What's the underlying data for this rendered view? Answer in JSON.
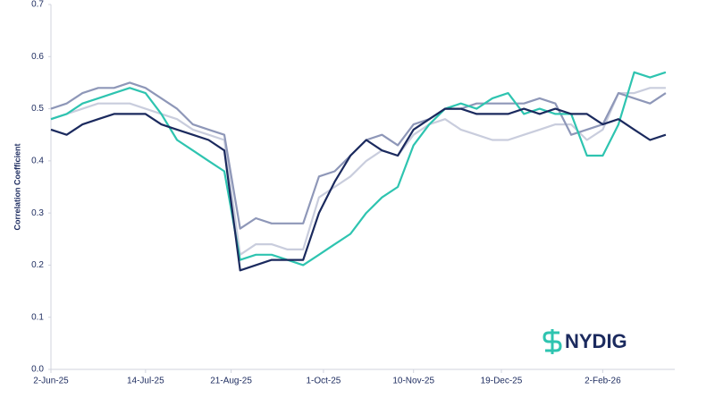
{
  "chart_data": {
    "type": "line",
    "y_label": "Correlation Coefficient",
    "logo_text": "NYDIG",
    "x": [
      "2-Jun-25",
      "9-Jun-25",
      "16-Jun-25",
      "23-Jun-25",
      "30-Jun-25",
      "7-Jul-25",
      "14-Jul-25",
      "21-Jul-25",
      "28-Jul-25",
      "4-Aug-25",
      "11-Aug-25",
      "18-Aug-25",
      "25-Aug-25",
      "1-Sep-25",
      "8-Sep-25",
      "15-Sep-25",
      "22-Sep-25",
      "29-Sep-25",
      "6-Oct-25",
      "13-Oct-25",
      "20-Oct-25",
      "27-Oct-25",
      "3-Nov-25",
      "10-Nov-25",
      "17-Nov-25",
      "24-Nov-25",
      "1-Dec-25",
      "8-Dec-25",
      "15-Dec-25",
      "22-Dec-25",
      "29-Dec-25",
      "5-Jan-26",
      "12-Jan-26",
      "19-Jan-26",
      "26-Jan-26",
      "2-Feb-26",
      "9-Feb-26",
      "16-Feb-26",
      "23-Feb-26",
      "2-Mar-26"
    ],
    "series": [
      {
        "color": "#c9cddd",
        "values": [
          0.48,
          0.49,
          0.5,
          0.51,
          0.51,
          0.51,
          0.5,
          0.49,
          0.48,
          0.46,
          0.45,
          0.44,
          0.22,
          0.24,
          0.24,
          0.23,
          0.23,
          0.33,
          0.35,
          0.37,
          0.4,
          0.42,
          0.41,
          0.45,
          0.47,
          0.48,
          0.46,
          0.45,
          0.44,
          0.44,
          0.45,
          0.46,
          0.47,
          0.47,
          0.44,
          0.46,
          0.53,
          0.53,
          0.54,
          0.54
        ]
      },
      {
        "color": "#8e97b8",
        "values": [
          0.5,
          0.51,
          0.53,
          0.54,
          0.54,
          0.55,
          0.54,
          0.52,
          0.5,
          0.47,
          0.46,
          0.45,
          0.27,
          0.29,
          0.28,
          0.28,
          0.28,
          0.37,
          0.38,
          0.41,
          0.44,
          0.45,
          0.43,
          0.47,
          0.48,
          0.5,
          0.5,
          0.51,
          0.51,
          0.51,
          0.51,
          0.52,
          0.51,
          0.45,
          0.46,
          0.47,
          0.53,
          0.52,
          0.51,
          0.53
        ]
      },
      {
        "color": "#2ec4b0",
        "values": [
          0.48,
          0.49,
          0.51,
          0.52,
          0.53,
          0.54,
          0.53,
          0.49,
          0.44,
          0.42,
          0.4,
          0.38,
          0.21,
          0.22,
          0.22,
          0.21,
          0.2,
          0.22,
          0.24,
          0.26,
          0.3,
          0.33,
          0.35,
          0.43,
          0.47,
          0.5,
          0.51,
          0.5,
          0.52,
          0.53,
          0.49,
          0.5,
          0.49,
          0.49,
          0.41,
          0.41,
          0.47,
          0.57,
          0.56,
          0.57
        ]
      },
      {
        "color": "#1b2a5e",
        "values": [
          0.46,
          0.45,
          0.47,
          0.48,
          0.49,
          0.49,
          0.49,
          0.47,
          0.46,
          0.45,
          0.44,
          0.42,
          0.19,
          0.2,
          0.21,
          0.21,
          0.21,
          0.3,
          0.36,
          0.41,
          0.44,
          0.42,
          0.41,
          0.46,
          0.48,
          0.5,
          0.5,
          0.49,
          0.49,
          0.49,
          0.5,
          0.49,
          0.5,
          0.49,
          0.49,
          0.47,
          0.48,
          0.46,
          0.44,
          0.45
        ]
      }
    ],
    "xlim": [
      "2-Jun-25",
      "6-Mar-26"
    ],
    "xticks": [
      "2-Jun-25",
      "14-Jul-25",
      "21-Aug-25",
      "1-Oct-25",
      "10-Nov-25",
      "19-Dec-25",
      "2-Feb-26"
    ],
    "ylim": [
      0,
      0.7
    ],
    "yticks": [
      {
        "value": 0,
        "label": "0.0"
      },
      0.1,
      0.2,
      0.3,
      0.4,
      0.5,
      0.6,
      0.7
    ],
    "grid": false
  }
}
